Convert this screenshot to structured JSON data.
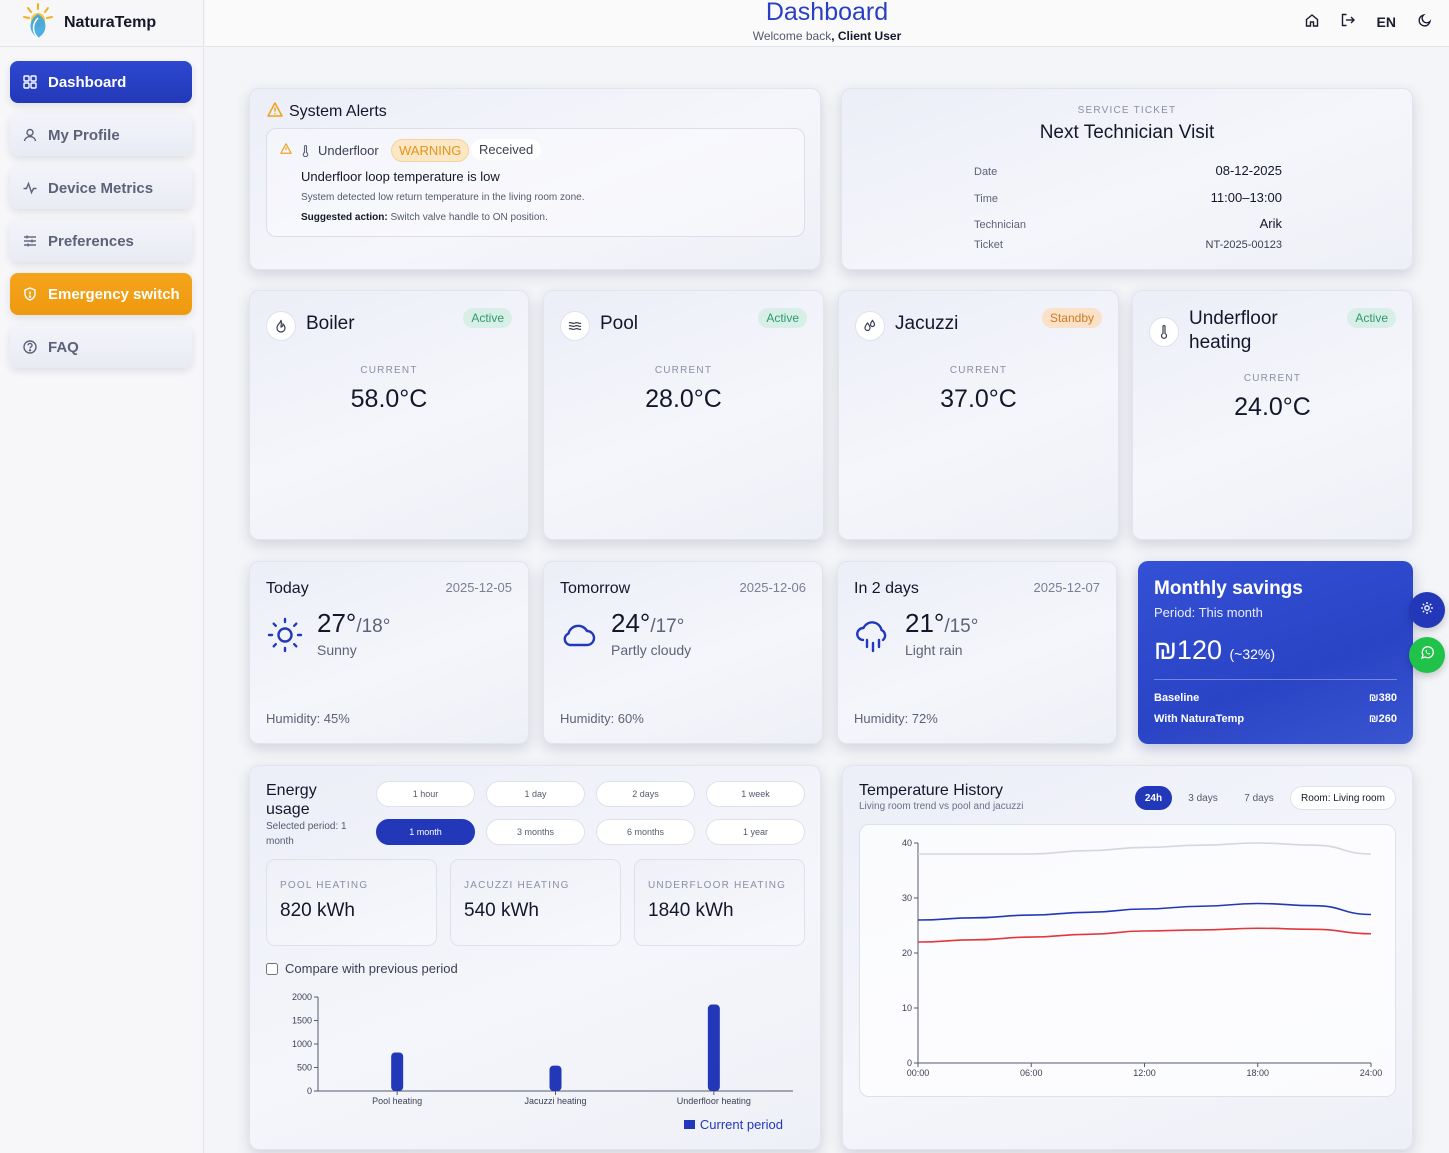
{
  "brand": {
    "name": "NaturaTemp"
  },
  "header": {
    "title": "Dashboard",
    "welcome_prefix": "Welcome back",
    "welcome_sep": ", ",
    "user": "Client User",
    "lang": "EN"
  },
  "sidebar": {
    "items": [
      {
        "label": "Dashboard"
      },
      {
        "label": "My Profile"
      },
      {
        "label": "Device Metrics"
      },
      {
        "label": "Preferences"
      },
      {
        "label": "Emergency switch"
      },
      {
        "label": "FAQ"
      }
    ]
  },
  "alerts": {
    "title": "System Alerts",
    "item": {
      "device": "Underfloor",
      "level": "WARNING",
      "status": "Received",
      "headline": "Underfloor loop temperature is low",
      "detail": "System detected low return temperature in the living room zone.",
      "action_label": "Suggested action:",
      "action_text": " Switch valve handle to ON position."
    }
  },
  "ticket": {
    "kicker": "SERVICE TICKET",
    "title": "Next Technician Visit",
    "rows": [
      {
        "label": "Date",
        "value": "08-12-2025"
      },
      {
        "label": "Time",
        "value": "11:00–13:00"
      },
      {
        "label": "Technician",
        "value": "Arik"
      },
      {
        "label": "Ticket",
        "value": "NT-2025-00123"
      }
    ]
  },
  "devices": [
    {
      "name": "Boiler",
      "status": "Active",
      "current_label": "CURRENT",
      "value": "58.0°C"
    },
    {
      "name": "Pool",
      "status": "Active",
      "current_label": "CURRENT",
      "value": "28.0°C"
    },
    {
      "name": "Jacuzzi",
      "status": "Standby",
      "current_label": "CURRENT",
      "value": "37.0°C"
    },
    {
      "name": "Underfloor heating",
      "status": "Active",
      "current_label": "CURRENT",
      "value": "24.0°C"
    }
  ],
  "weather": [
    {
      "day": "Today",
      "date": "2025-12-05",
      "high": "27°",
      "low": "/18°",
      "condition": "Sunny",
      "humidity": "Humidity: 45%",
      "icon": "sun-icon"
    },
    {
      "day": "Tomorrow",
      "date": "2025-12-06",
      "high": "24°",
      "low": "/17°",
      "condition": "Partly cloudy",
      "humidity": "Humidity: 60%",
      "icon": "cloud-icon"
    },
    {
      "day": "In 2 days",
      "date": "2025-12-07",
      "high": "21°",
      "low": "/15°",
      "condition": "Light rain",
      "humidity": "Humidity: 72%",
      "icon": "rain-icon"
    }
  ],
  "savings": {
    "title": "Monthly savings",
    "period": "Period: This month",
    "amount": "₪120",
    "pct": "(~32%)",
    "rows": [
      {
        "label": "Baseline",
        "value": "₪380"
      },
      {
        "label": "With NaturaTemp",
        "value": "₪260"
      }
    ]
  },
  "energy": {
    "title_line1": "Energy",
    "title_line2": "usage",
    "selected_line1": "Selected period: 1",
    "selected_line2": "month",
    "periods": [
      "1 hour",
      "1 day",
      "2 days",
      "1 week",
      "1 month",
      "3 months",
      "6 months",
      "1 year"
    ],
    "active_period": "1 month",
    "boxes": [
      {
        "label": "POOL HEATING",
        "value": "820 kWh"
      },
      {
        "label": "JACUZZI HEATING",
        "value": "540 kWh"
      },
      {
        "label": "UNDERFLOOR HEATING",
        "value": "1840 kWh"
      }
    ],
    "compare_label": "Compare with previous period",
    "legend": "Current period"
  },
  "history": {
    "title": "Temperature History",
    "subtitle": "Living room trend vs pool and jacuzzi",
    "tabs": [
      "24h",
      "3 days",
      "7 days"
    ],
    "active_tab": "24h",
    "room": "Room: Living room"
  },
  "colors": {
    "accent": "#2238b8",
    "warning": "#ee9a10",
    "active": "#2e9a72",
    "whatsapp": "#20c24a"
  },
  "chart_data": [
    {
      "type": "bar",
      "categories": [
        "Pool heating",
        "Jacuzzi heating",
        "Underfloor heating"
      ],
      "series": [
        {
          "name": "Current period",
          "values": [
            820,
            540,
            1840
          ]
        }
      ],
      "ylim": [
        0,
        2000
      ],
      "yticks": [
        0,
        500,
        1000,
        1500,
        2000
      ],
      "legend": "bottom-right"
    },
    {
      "type": "line",
      "x": [
        "00:00",
        "03:00",
        "06:00",
        "09:00",
        "12:00",
        "15:00",
        "18:00",
        "21:00",
        "24:00"
      ],
      "xticks": [
        "00:00",
        "06:00",
        "12:00",
        "18:00",
        "24:00"
      ],
      "series": [
        {
          "color": "#d4d6e0",
          "values": [
            38,
            38,
            38,
            38.6,
            39.2,
            39.6,
            40,
            39.6,
            38
          ]
        },
        {
          "color": "#2238b8",
          "values": [
            26,
            26.4,
            26.9,
            27.4,
            28,
            28.5,
            29,
            28.6,
            27
          ]
        },
        {
          "color": "#e0383c",
          "values": [
            22,
            22.4,
            22.9,
            23.4,
            24,
            24.2,
            24.5,
            24.3,
            23.5
          ]
        }
      ],
      "ylim": [
        0,
        40
      ],
      "yticks": [
        0,
        10,
        20,
        30,
        40
      ]
    }
  ]
}
